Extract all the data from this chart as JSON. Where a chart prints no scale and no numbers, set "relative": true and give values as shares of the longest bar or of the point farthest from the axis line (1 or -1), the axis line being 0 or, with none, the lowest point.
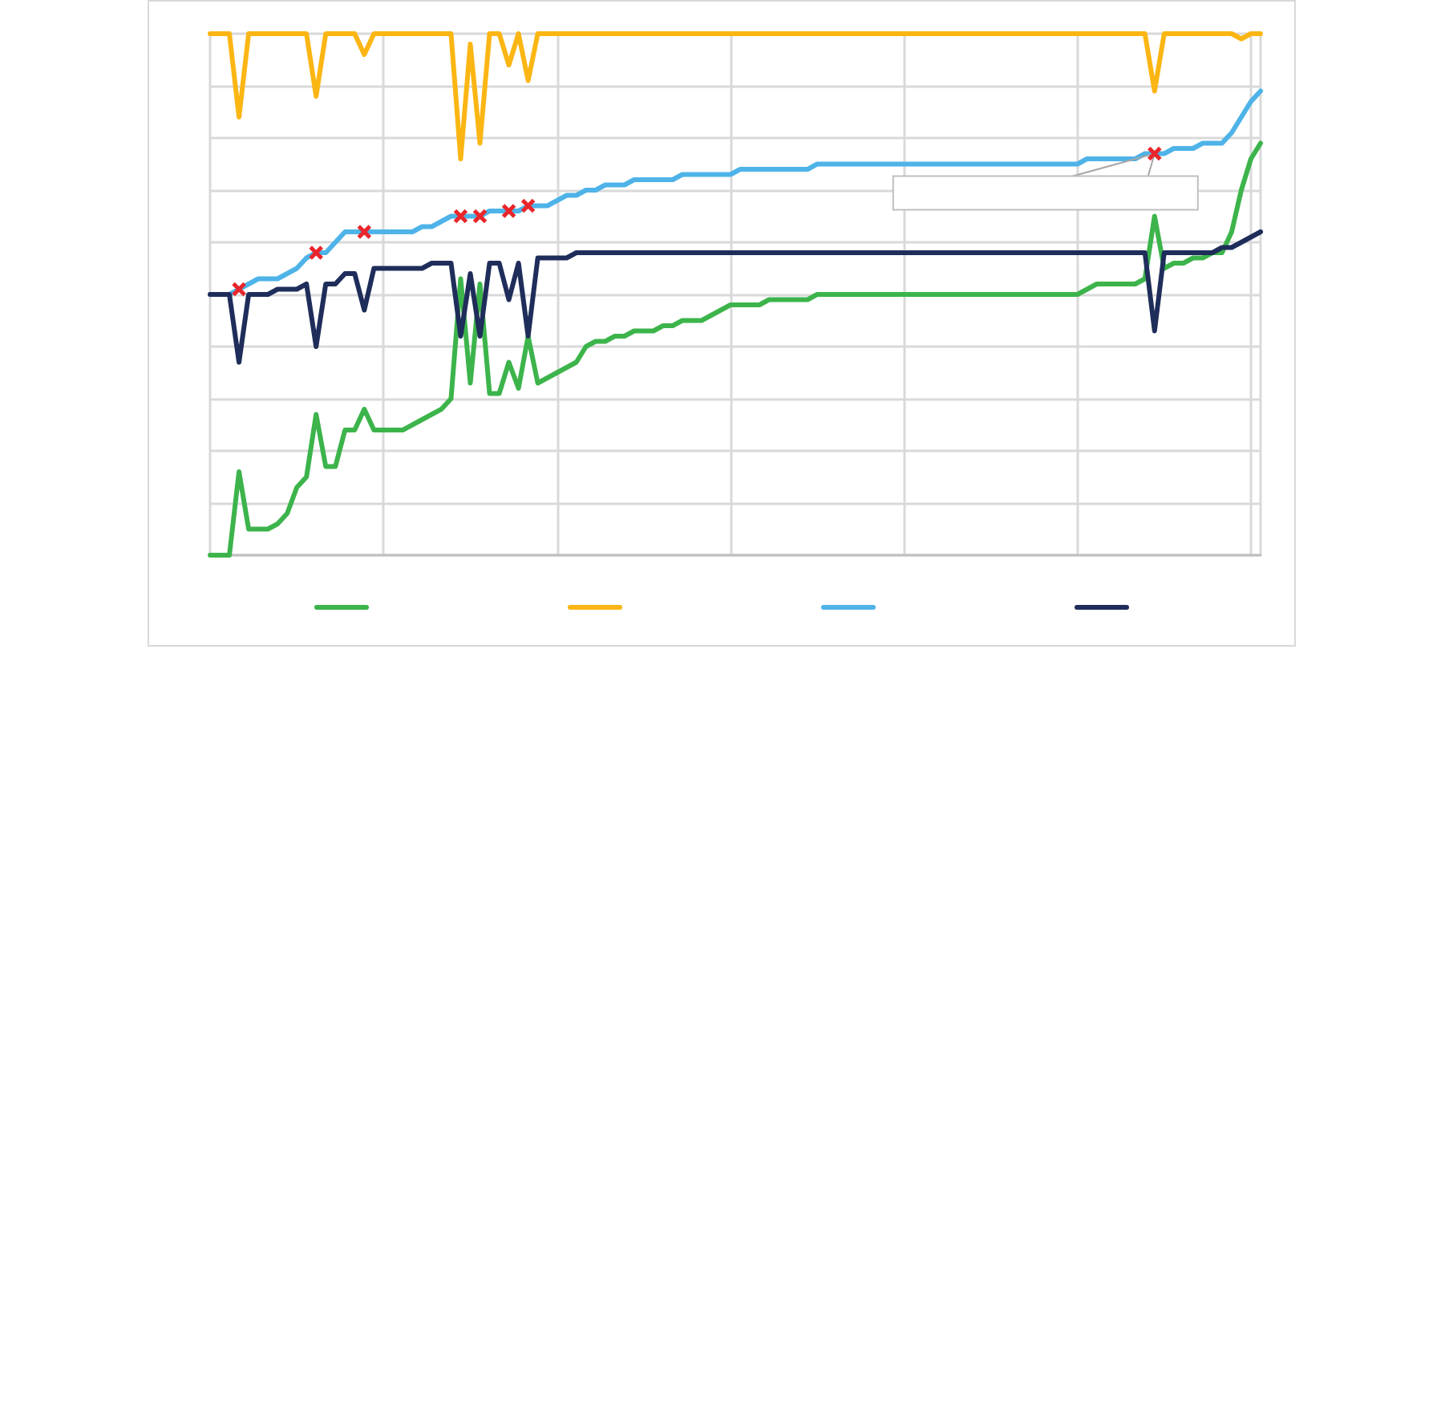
{
  "chart_data": {
    "type": "line",
    "relative": true,
    "grid": true,
    "marker": "none",
    "line_style": "solid",
    "categories": [
      null,
      null,
      null,
      null,
      null,
      null,
      null,
      null,
      null,
      null,
      null,
      null,
      null,
      null,
      null,
      null,
      null,
      null,
      null,
      null,
      null,
      null,
      null,
      null,
      null,
      null,
      null,
      null,
      null,
      null,
      null,
      null,
      null,
      null,
      null,
      null,
      null,
      null,
      null,
      null,
      null,
      null,
      null,
      null,
      null,
      null,
      null,
      null,
      null,
      null,
      null,
      null,
      null,
      null,
      null,
      null,
      null,
      null,
      null,
      null,
      null,
      null,
      null,
      null,
      null,
      null,
      null,
      null,
      null,
      null,
      null,
      null,
      null,
      null,
      null,
      null,
      null,
      null,
      null,
      null,
      null,
      null,
      null,
      null,
      null,
      null,
      null,
      null,
      null,
      null,
      null,
      null,
      null,
      null,
      null,
      null,
      null,
      null,
      null,
      null,
      null,
      null,
      null,
      null,
      null,
      null,
      null,
      null,
      null,
      null
    ],
    "series": [
      {
        "color": "#3cb44b",
        "values": [
          0,
          0,
          0,
          0.16,
          0.05,
          0.05,
          0.05,
          0.06,
          0.08,
          0.13,
          0.15,
          0.27,
          0.17,
          0.17,
          0.24,
          0.24,
          0.28,
          0.24,
          0.24,
          0.24,
          0.24,
          0.25,
          0.26,
          0.27,
          0.28,
          0.3,
          0.53,
          0.33,
          0.52,
          0.31,
          0.31,
          0.37,
          0.32,
          0.42,
          0.33,
          0.34,
          0.35,
          0.36,
          0.37,
          0.4,
          0.41,
          0.41,
          0.42,
          0.42,
          0.43,
          0.43,
          0.43,
          0.44,
          0.44,
          0.45,
          0.45,
          0.45,
          0.46,
          0.47,
          0.48,
          0.48,
          0.48,
          0.48,
          0.49,
          0.49,
          0.49,
          0.49,
          0.49,
          0.5,
          0.5,
          0.5,
          0.5,
          0.5,
          0.5,
          0.5,
          0.5,
          0.5,
          0.5,
          0.5,
          0.5,
          0.5,
          0.5,
          0.5,
          0.5,
          0.5,
          0.5,
          0.5,
          0.5,
          0.5,
          0.5,
          0.5,
          0.5,
          0.5,
          0.5,
          0.5,
          0.5,
          0.51,
          0.52,
          0.52,
          0.52,
          0.52,
          0.52,
          0.53,
          0.65,
          0.55,
          0.56,
          0.56,
          0.57,
          0.57,
          0.58,
          0.58,
          0.62,
          0.7,
          0.76,
          0.79
        ]
      },
      {
        "color": "#fbb614",
        "values": [
          1,
          1,
          1,
          0.84,
          1,
          1,
          1,
          1,
          1,
          1,
          1,
          0.88,
          1,
          1,
          1,
          1,
          0.96,
          1,
          1,
          1,
          1,
          1,
          1,
          1,
          1,
          1,
          0.76,
          0.98,
          0.79,
          1,
          1,
          0.94,
          1,
          0.91,
          1,
          1,
          1,
          1,
          1,
          1,
          1,
          1,
          1,
          1,
          1,
          1,
          1,
          1,
          1,
          1,
          1,
          1,
          1,
          1,
          1,
          1,
          1,
          1,
          1,
          1,
          1,
          1,
          1,
          1,
          1,
          1,
          1,
          1,
          1,
          1,
          1,
          1,
          1,
          1,
          1,
          1,
          1,
          1,
          1,
          1,
          1,
          1,
          1,
          1,
          1,
          1,
          1,
          1,
          1,
          1,
          1,
          1,
          1,
          1,
          1,
          1,
          1,
          1,
          0.89,
          1,
          1,
          1,
          1,
          1,
          1,
          1,
          1,
          0.99,
          1,
          1
        ]
      },
      {
        "color": "#4eb3e8",
        "values": [
          0.5,
          0.5,
          0.5,
          0.51,
          0.52,
          0.53,
          0.53,
          0.53,
          0.54,
          0.55,
          0.57,
          0.58,
          0.58,
          0.6,
          0.62,
          0.62,
          0.62,
          0.62,
          0.62,
          0.62,
          0.62,
          0.62,
          0.63,
          0.63,
          0.64,
          0.65,
          0.65,
          0.65,
          0.65,
          0.66,
          0.66,
          0.66,
          0.66,
          0.67,
          0.67,
          0.67,
          0.68,
          0.69,
          0.69,
          0.7,
          0.7,
          0.71,
          0.71,
          0.71,
          0.72,
          0.72,
          0.72,
          0.72,
          0.72,
          0.73,
          0.73,
          0.73,
          0.73,
          0.73,
          0.73,
          0.74,
          0.74,
          0.74,
          0.74,
          0.74,
          0.74,
          0.74,
          0.74,
          0.75,
          0.75,
          0.75,
          0.75,
          0.75,
          0.75,
          0.75,
          0.75,
          0.75,
          0.75,
          0.75,
          0.75,
          0.75,
          0.75,
          0.75,
          0.75,
          0.75,
          0.75,
          0.75,
          0.75,
          0.75,
          0.75,
          0.75,
          0.75,
          0.75,
          0.75,
          0.75,
          0.75,
          0.76,
          0.76,
          0.76,
          0.76,
          0.76,
          0.76,
          0.77,
          0.77,
          0.77,
          0.78,
          0.78,
          0.78,
          0.79,
          0.79,
          0.79,
          0.81,
          0.84,
          0.87,
          0.89
        ]
      },
      {
        "color": "#1f2d5a",
        "values": [
          0.5,
          0.5,
          0.5,
          0.37,
          0.5,
          0.5,
          0.5,
          0.51,
          0.51,
          0.51,
          0.52,
          0.4,
          0.52,
          0.52,
          0.54,
          0.54,
          0.47,
          0.55,
          0.55,
          0.55,
          0.55,
          0.55,
          0.55,
          0.56,
          0.56,
          0.56,
          0.42,
          0.54,
          0.42,
          0.56,
          0.56,
          0.49,
          0.56,
          0.42,
          0.57,
          0.57,
          0.57,
          0.57,
          0.58,
          0.58,
          0.58,
          0.58,
          0.58,
          0.58,
          0.58,
          0.58,
          0.58,
          0.58,
          0.58,
          0.58,
          0.58,
          0.58,
          0.58,
          0.58,
          0.58,
          0.58,
          0.58,
          0.58,
          0.58,
          0.58,
          0.58,
          0.58,
          0.58,
          0.58,
          0.58,
          0.58,
          0.58,
          0.58,
          0.58,
          0.58,
          0.58,
          0.58,
          0.58,
          0.58,
          0.58,
          0.58,
          0.58,
          0.58,
          0.58,
          0.58,
          0.58,
          0.58,
          0.58,
          0.58,
          0.58,
          0.58,
          0.58,
          0.58,
          0.58,
          0.58,
          0.58,
          0.58,
          0.58,
          0.58,
          0.58,
          0.58,
          0.58,
          0.58,
          0.43,
          0.58,
          0.58,
          0.58,
          0.58,
          0.58,
          0.58,
          0.59,
          0.59,
          0.6,
          0.61,
          0.62
        ]
      }
    ]
  }
}
